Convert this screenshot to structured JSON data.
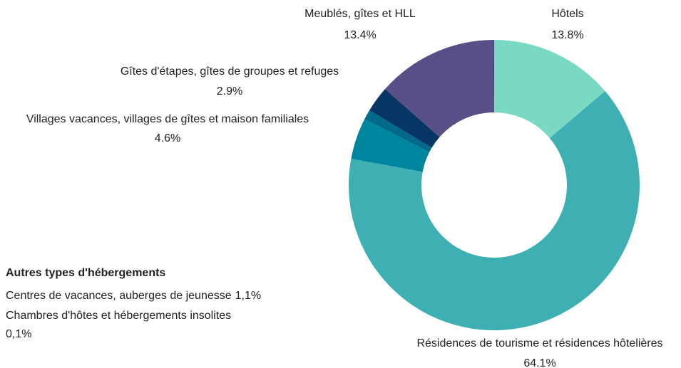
{
  "chart_data": {
    "type": "donut",
    "categories": [
      "Hôtels",
      "Résidences de tourisme et résidences hôtelières",
      "Villages vacances, villages de gîtes et maison familiales",
      "Centres de vacances, auberges de jeunesse",
      "Gîtes d'étapes, gîtes de groupes et refuges",
      "Meublés, gîtes et HLL",
      "Chambres d'hôtes et hébergements insolites"
    ],
    "values": [
      13.8,
      64.1,
      4.6,
      1.1,
      2.9,
      13.4,
      0.1
    ],
    "value_labels": [
      "13.8%",
      "64.1%",
      "4.6%",
      "1,1%",
      "2.9%",
      "13.4%",
      "0,1%"
    ],
    "colors": [
      "#79d9c3",
      "#3eb0b3",
      "#00859f",
      "#006a8a",
      "#063764",
      "#574f85",
      "#3b3b6b"
    ],
    "others_title": "Autres types d'hébergements"
  }
}
